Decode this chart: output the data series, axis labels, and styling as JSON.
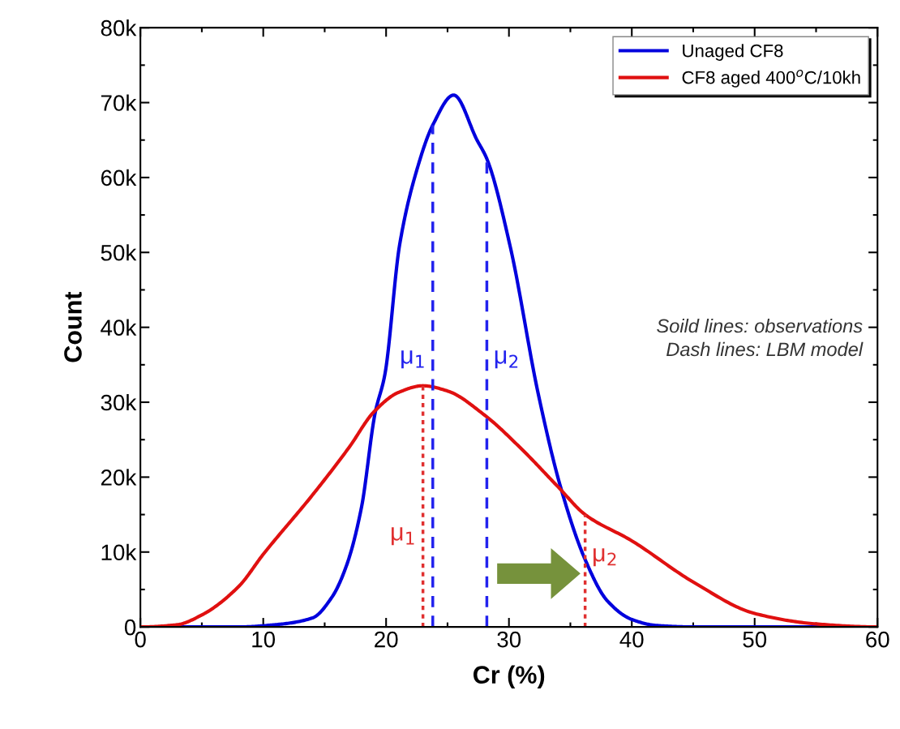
{
  "chart_data": {
    "type": "line",
    "xlabel": "Cr (%)",
    "ylabel": "Count",
    "xlim": [
      0,
      60
    ],
    "xticks": [
      0,
      10,
      20,
      30,
      40,
      50,
      60
    ],
    "ylim": [
      0,
      80000
    ],
    "yticks": [
      {
        "value": 0,
        "label": "0"
      },
      {
        "value": 10000,
        "label": "10k"
      },
      {
        "value": 20000,
        "label": "20k"
      },
      {
        "value": 30000,
        "label": "30k"
      },
      {
        "value": 40000,
        "label": "40k"
      },
      {
        "value": 50000,
        "label": "50k"
      },
      {
        "value": 60000,
        "label": "60k"
      },
      {
        "value": 70000,
        "label": "70k"
      },
      {
        "value": 80000,
        "label": "80k"
      }
    ],
    "legend": "top right",
    "grid": false,
    "series": [
      {
        "name": "Unaged CF8",
        "color": "#0000dd",
        "line_style": "solid",
        "x": [
          0,
          8,
          11,
          14,
          15.6,
          16.8,
          18,
          19.1,
          19.9,
          21.1,
          22.5,
          23.8,
          25.5,
          27.4,
          28.2,
          30.1,
          32.4,
          34.2,
          36.2,
          38,
          40,
          42,
          45,
          60
        ],
        "values": [
          0,
          0,
          300,
          1200,
          4000,
          8300,
          16000,
          28500,
          33700,
          51000,
          61000,
          67000,
          71000,
          65000,
          62500,
          50800,
          31000,
          18700,
          9000,
          3500,
          1000,
          200,
          0,
          0
        ]
      },
      {
        "name": "CF8 aged 400$^{o}$C/10kh",
        "color": "#e01010",
        "line_style": "solid",
        "x": [
          0,
          3,
          5,
          8,
          10,
          14,
          17,
          19,
          21,
          23,
          25,
          28,
          31,
          34,
          36.2,
          40,
          45,
          50,
          55,
          60
        ],
        "values": [
          0,
          300,
          1600,
          5400,
          9700,
          17600,
          24000,
          28700,
          31300,
          32200,
          31500,
          28300,
          23800,
          18700,
          15000,
          11500,
          6000,
          1800,
          400,
          0
        ]
      },
      {
        "color": "#2222ee",
        "line_style": "dashed",
        "x": [
          23.8,
          23.8
        ],
        "values": [
          0,
          67000
        ]
      },
      {
        "color": "#2222ee",
        "line_style": "dashed",
        "x": [
          28.2,
          28.2
        ],
        "values": [
          0,
          62500
        ]
      },
      {
        "color": "#e03030",
        "line_style": "dotted",
        "x": [
          23,
          23
        ],
        "values": [
          0,
          32200
        ]
      },
      {
        "color": "#e03030",
        "line_style": "dotted",
        "x": [
          36.2,
          36.2
        ],
        "values": [
          0,
          15000
        ]
      }
    ],
    "annotations": [
      "μ$_{1}$",
      "μ$_{2}$",
      "μ$_{1}$",
      "μ$_{2}$",
      "Soild lines: observations\nDash lines: LBM model"
    ]
  }
}
